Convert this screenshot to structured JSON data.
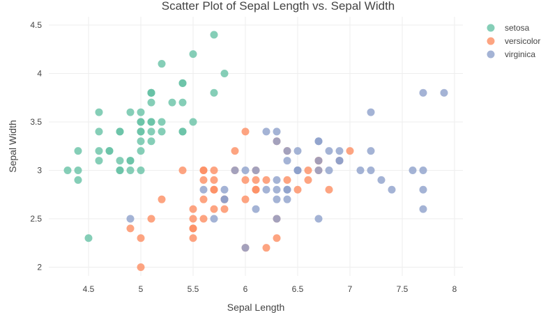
{
  "chart_data": {
    "type": "scatter",
    "title": "Scatter Plot of Sepal Length vs. Sepal Width",
    "xlabel": "Sepal Length",
    "ylabel": "Sepal Width",
    "xlim": [
      4.12,
      8.08
    ],
    "ylim": [
      1.91,
      4.586
    ],
    "xticks": [
      4.5,
      5,
      5.5,
      6,
      6.5,
      7,
      7.5,
      8
    ],
    "xtick_labels": [
      "4.5",
      "5",
      "5.5",
      "6",
      "6.5",
      "7",
      "7.5",
      "8"
    ],
    "yticks": [
      2,
      2.5,
      3,
      3.5,
      4,
      4.5
    ],
    "ytick_labels": [
      "2",
      "2.5",
      "3",
      "3.5",
      "4",
      "4.5"
    ],
    "grid": true,
    "legend_position": "top-right",
    "series": [
      {
        "name": "setosa",
        "color": "#66c2a5",
        "points": [
          [
            5.1,
            3.5
          ],
          [
            4.9,
            3.0
          ],
          [
            4.7,
            3.2
          ],
          [
            4.6,
            3.1
          ],
          [
            5.0,
            3.6
          ],
          [
            5.4,
            3.9
          ],
          [
            4.6,
            3.4
          ],
          [
            5.0,
            3.4
          ],
          [
            4.4,
            2.9
          ],
          [
            4.9,
            3.1
          ],
          [
            5.4,
            3.7
          ],
          [
            4.8,
            3.4
          ],
          [
            4.8,
            3.0
          ],
          [
            4.3,
            3.0
          ],
          [
            5.8,
            4.0
          ],
          [
            5.7,
            4.4
          ],
          [
            5.4,
            3.9
          ],
          [
            5.1,
            3.5
          ],
          [
            5.7,
            3.8
          ],
          [
            5.1,
            3.8
          ],
          [
            5.4,
            3.4
          ],
          [
            5.1,
            3.7
          ],
          [
            4.6,
            3.6
          ],
          [
            5.1,
            3.3
          ],
          [
            4.8,
            3.4
          ],
          [
            5.0,
            3.0
          ],
          [
            5.0,
            3.4
          ],
          [
            5.2,
            3.5
          ],
          [
            5.2,
            3.4
          ],
          [
            4.7,
            3.2
          ],
          [
            4.8,
            3.1
          ],
          [
            5.4,
            3.4
          ],
          [
            5.2,
            4.1
          ],
          [
            5.5,
            4.2
          ],
          [
            4.9,
            3.1
          ],
          [
            5.0,
            3.2
          ],
          [
            5.5,
            3.5
          ],
          [
            4.9,
            3.6
          ],
          [
            4.4,
            3.0
          ],
          [
            5.1,
            3.4
          ],
          [
            5.0,
            3.5
          ],
          [
            4.5,
            2.3
          ],
          [
            4.4,
            3.2
          ],
          [
            5.0,
            3.5
          ],
          [
            5.1,
            3.8
          ],
          [
            4.8,
            3.0
          ],
          [
            5.1,
            3.8
          ],
          [
            4.6,
            3.2
          ],
          [
            5.3,
            3.7
          ],
          [
            5.0,
            3.3
          ]
        ]
      },
      {
        "name": "versicolor",
        "color": "#fc8d62",
        "points": [
          [
            7.0,
            3.2
          ],
          [
            6.4,
            3.2
          ],
          [
            6.9,
            3.1
          ],
          [
            5.5,
            2.3
          ],
          [
            6.5,
            2.8
          ],
          [
            5.7,
            2.8
          ],
          [
            6.3,
            3.3
          ],
          [
            4.9,
            2.4
          ],
          [
            6.6,
            2.9
          ],
          [
            5.2,
            2.7
          ],
          [
            5.0,
            2.0
          ],
          [
            5.9,
            3.0
          ],
          [
            6.0,
            2.2
          ],
          [
            6.1,
            2.9
          ],
          [
            5.6,
            2.9
          ],
          [
            6.7,
            3.1
          ],
          [
            5.6,
            3.0
          ],
          [
            5.8,
            2.7
          ],
          [
            6.2,
            2.2
          ],
          [
            5.6,
            2.5
          ],
          [
            5.9,
            3.2
          ],
          [
            6.1,
            2.8
          ],
          [
            6.3,
            2.5
          ],
          [
            6.1,
            2.8
          ],
          [
            6.4,
            2.9
          ],
          [
            6.6,
            3.0
          ],
          [
            6.8,
            2.8
          ],
          [
            6.7,
            3.0
          ],
          [
            6.0,
            2.9
          ],
          [
            5.7,
            2.6
          ],
          [
            5.5,
            2.4
          ],
          [
            5.5,
            2.4
          ],
          [
            5.8,
            2.7
          ],
          [
            6.0,
            2.7
          ],
          [
            5.4,
            3.0
          ],
          [
            6.0,
            3.4
          ],
          [
            6.7,
            3.1
          ],
          [
            6.3,
            2.3
          ],
          [
            5.6,
            3.0
          ],
          [
            5.5,
            2.5
          ],
          [
            5.5,
            2.6
          ],
          [
            6.1,
            3.0
          ],
          [
            5.8,
            2.6
          ],
          [
            5.0,
            2.3
          ],
          [
            5.6,
            2.7
          ],
          [
            5.7,
            3.0
          ],
          [
            5.7,
            2.9
          ],
          [
            6.2,
            2.9
          ],
          [
            5.1,
            2.5
          ],
          [
            5.7,
            2.8
          ]
        ]
      },
      {
        "name": "virginica",
        "color": "#8da0cb",
        "points": [
          [
            6.3,
            3.3
          ],
          [
            5.8,
            2.7
          ],
          [
            7.1,
            3.0
          ],
          [
            6.3,
            2.9
          ],
          [
            6.5,
            3.0
          ],
          [
            7.6,
            3.0
          ],
          [
            4.9,
            2.5
          ],
          [
            7.3,
            2.9
          ],
          [
            6.7,
            2.5
          ],
          [
            7.2,
            3.6
          ],
          [
            6.5,
            3.2
          ],
          [
            6.4,
            2.7
          ],
          [
            6.8,
            3.0
          ],
          [
            5.7,
            2.5
          ],
          [
            5.8,
            2.8
          ],
          [
            6.4,
            3.2
          ],
          [
            6.5,
            3.0
          ],
          [
            7.7,
            3.8
          ],
          [
            7.7,
            2.6
          ],
          [
            6.0,
            2.2
          ],
          [
            6.9,
            3.2
          ],
          [
            5.6,
            2.8
          ],
          [
            7.7,
            2.8
          ],
          [
            6.3,
            2.7
          ],
          [
            6.7,
            3.3
          ],
          [
            7.2,
            3.2
          ],
          [
            6.2,
            2.8
          ],
          [
            6.1,
            3.0
          ],
          [
            6.4,
            2.8
          ],
          [
            7.2,
            3.0
          ],
          [
            7.4,
            2.8
          ],
          [
            7.9,
            3.8
          ],
          [
            6.4,
            2.8
          ],
          [
            6.3,
            2.8
          ],
          [
            6.1,
            2.6
          ],
          [
            7.7,
            3.0
          ],
          [
            6.3,
            3.4
          ],
          [
            6.4,
            3.1
          ],
          [
            6.0,
            3.0
          ],
          [
            6.9,
            3.1
          ],
          [
            6.7,
            3.1
          ],
          [
            6.9,
            3.1
          ],
          [
            5.8,
            2.7
          ],
          [
            6.8,
            3.2
          ],
          [
            6.7,
            3.3
          ],
          [
            6.7,
            3.0
          ],
          [
            6.3,
            2.5
          ],
          [
            6.5,
            3.0
          ],
          [
            6.2,
            3.4
          ],
          [
            5.9,
            3.0
          ]
        ]
      }
    ]
  }
}
